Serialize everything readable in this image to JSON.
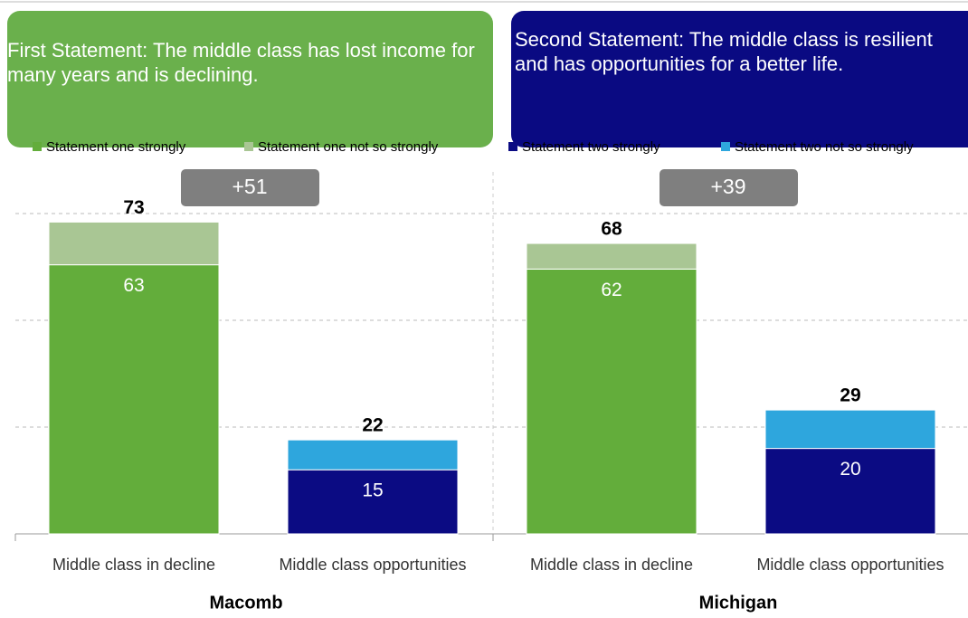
{
  "chart_data": {
    "type": "stacked_bar",
    "statements": [
      "First Statement: The middle class has lost income for many years and is declining.",
      "Second Statement: The middle class is resilient and has opportunities for a better life."
    ],
    "groups": [
      "Macomb",
      "Michigan"
    ],
    "annotations": [
      "+51",
      "+39"
    ],
    "categories": [
      "Middle class in decline",
      "Middle class opportunities",
      "Middle class in decline",
      "Middle class opportunities"
    ],
    "series": [
      {
        "name": "Statement one strongly",
        "color": "#63ad3b",
        "values": [
          63,
          null,
          62,
          null
        ],
        "show_labels": true
      },
      {
        "name": "Statement one not so strongly",
        "color": "#a9c694",
        "values": [
          10,
          null,
          6,
          null
        ],
        "show_labels": false
      },
      {
        "name": "Statement two strongly",
        "color": "#0b0b83",
        "values": [
          null,
          15,
          null,
          20
        ],
        "show_labels": true
      },
      {
        "name": "Statement two not so strongly",
        "color": "#2ea6dd",
        "values": [
          null,
          7,
          null,
          9
        ],
        "show_labels": false
      }
    ],
    "totals": [
      73,
      22,
      68,
      29
    ],
    "ylim": [
      0,
      75
    ],
    "yticks": [
      0,
      25,
      50,
      75
    ],
    "grid": true
  }
}
